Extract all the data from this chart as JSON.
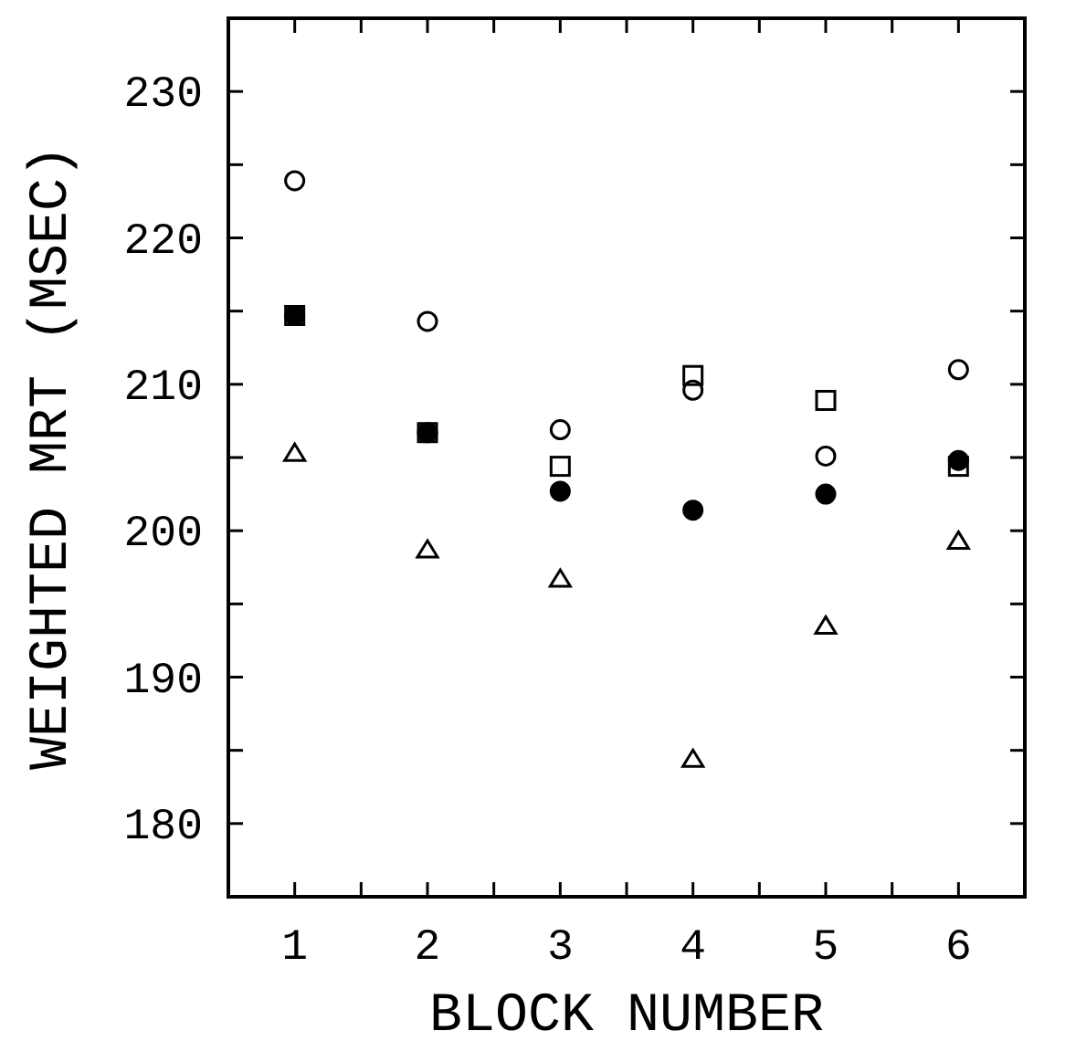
{
  "chart_data": {
    "type": "scatter",
    "xlabel": "BLOCK NUMBER",
    "ylabel": "WEIGHTED MRT (MSEC)",
    "x": [
      1,
      2,
      3,
      4,
      5,
      6
    ],
    "xlim": [
      0.5,
      6.5
    ],
    "xticks": [
      {
        "value": 0.5,
        "label": null
      },
      1,
      {
        "value": 1.5,
        "label": null
      },
      2,
      {
        "value": 2.5,
        "label": null
      },
      3,
      {
        "value": 3.5,
        "label": null
      },
      4,
      {
        "value": 4.5,
        "label": null
      },
      5,
      {
        "value": 5.5,
        "label": null
      },
      6,
      {
        "value": 6.5,
        "label": null
      }
    ],
    "ylim": [
      175,
      235
    ],
    "yticks": [
      {
        "value": 175,
        "label": null
      },
      180,
      {
        "value": 185,
        "label": null
      },
      190,
      {
        "value": 195,
        "label": null
      },
      200,
      {
        "value": 205,
        "label": null
      },
      210,
      {
        "value": 215,
        "label": null
      },
      220,
      {
        "value": 225,
        "label": null
      },
      230,
      {
        "value": 235,
        "label": null
      }
    ],
    "grid": false,
    "series": [
      {
        "color": "#000000",
        "marker": "circle",
        "values": [
          223.9,
          214.3,
          206.9,
          209.6,
          205.1,
          211.0
        ]
      },
      {
        "color": "#000000",
        "marker": "circle",
        "values": [
          214.7,
          206.7,
          202.7,
          201.4,
          202.5,
          204.8
        ]
      },
      {
        "color": "#000000",
        "marker": "square",
        "values": [
          214.7,
          206.7,
          204.4,
          210.6,
          208.9,
          204.4
        ]
      },
      {
        "color": "#000000",
        "marker": "triangle",
        "values": [
          205.3,
          198.7,
          196.7,
          184.4,
          193.5,
          199.3
        ]
      }
    ]
  }
}
